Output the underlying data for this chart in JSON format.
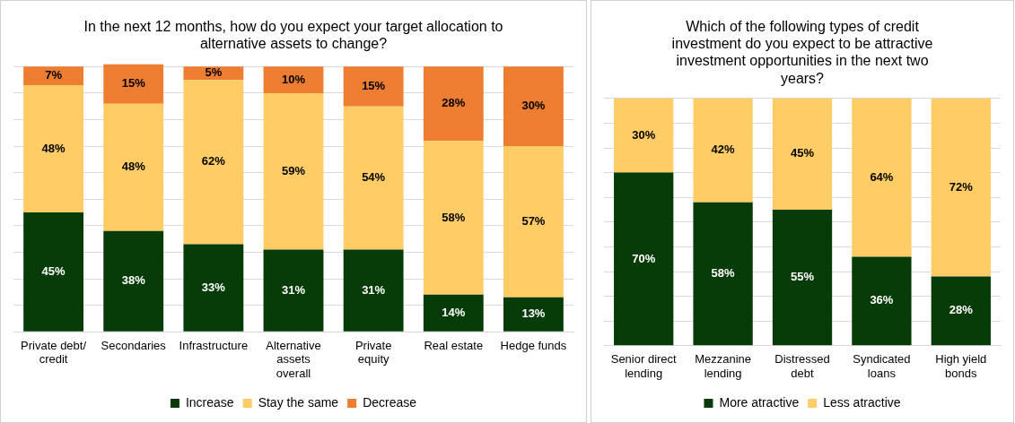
{
  "chart_data": [
    {
      "type": "bar",
      "title": "In the next 12 months, how do you expect your target allocation to alternative assets to change?",
      "stacked": true,
      "categories": [
        "Private debt/ credit",
        "Secondaries",
        "Infrastructure",
        "Alternative assets overall",
        "Private equity",
        "Real estate",
        "Hedge funds"
      ],
      "ylim": [
        0,
        101
      ],
      "yticks": [
        {
          "value": 0,
          "label": null
        },
        {
          "value": 10,
          "label": null
        },
        {
          "value": 20,
          "label": null
        },
        {
          "value": 30,
          "label": null
        },
        {
          "value": 40,
          "label": null
        },
        {
          "value": 50,
          "label": null
        },
        {
          "value": 60,
          "label": null
        },
        {
          "value": 70,
          "label": null
        },
        {
          "value": 80,
          "label": null
        },
        {
          "value": 90,
          "label": null
        },
        {
          "value": 100,
          "label": null
        }
      ],
      "grid": "y",
      "tick_labels": "x",
      "legend": "bottom",
      "series": [
        {
          "name": "Increase",
          "color": "#073b07",
          "values": [
            45,
            38,
            33,
            31,
            31,
            14,
            13
          ],
          "value_labels": [
            "45%",
            "38%",
            "33%",
            "31%",
            "31%",
            "14%",
            "13%"
          ]
        },
        {
          "name": "Stay the same",
          "color": "#ffcc66",
          "values": [
            48,
            48,
            62,
            59,
            54,
            58,
            57
          ],
          "value_labels": [
            "48%",
            "48%",
            "62%",
            "59%",
            "54%",
            "58%",
            "57%"
          ]
        },
        {
          "name": "Decrease",
          "color": "#ed7d31",
          "values": [
            7,
            15,
            5,
            10,
            15,
            28,
            30
          ],
          "value_labels": [
            "7%",
            "15%",
            "5%",
            "10%",
            "15%",
            "28%",
            "30%"
          ]
        }
      ]
    },
    {
      "type": "bar",
      "title": "Which of the following types of credit investment do you expect to be attractive investment opportunities in the next two years?",
      "stacked": true,
      "categories": [
        "Senior direct lending",
        "Mezzanine lending",
        "Distressed debt",
        "Syndicated loans",
        "High yield bonds"
      ],
      "ylim": [
        0,
        100
      ],
      "yticks": [
        {
          "value": 0,
          "label": null
        },
        {
          "value": 10,
          "label": null
        },
        {
          "value": 20,
          "label": null
        },
        {
          "value": 30,
          "label": null
        },
        {
          "value": 40,
          "label": null
        },
        {
          "value": 50,
          "label": null
        },
        {
          "value": 60,
          "label": null
        },
        {
          "value": 70,
          "label": null
        },
        {
          "value": 80,
          "label": null
        },
        {
          "value": 90,
          "label": null
        },
        {
          "value": 100,
          "label": null
        }
      ],
      "grid": "y",
      "tick_labels": "x",
      "legend": "bottom",
      "series": [
        {
          "name": "More atractive",
          "color": "#073b07",
          "values": [
            70,
            58,
            55,
            36,
            28
          ],
          "value_labels": [
            "70%",
            "58%",
            "55%",
            "36%",
            "28%"
          ]
        },
        {
          "name": "Less atractive",
          "color": "#ffcc66",
          "values": [
            30,
            42,
            45,
            64,
            72
          ],
          "value_labels": [
            "30%",
            "42%",
            "45%",
            "64%",
            "72%"
          ]
        }
      ]
    }
  ]
}
